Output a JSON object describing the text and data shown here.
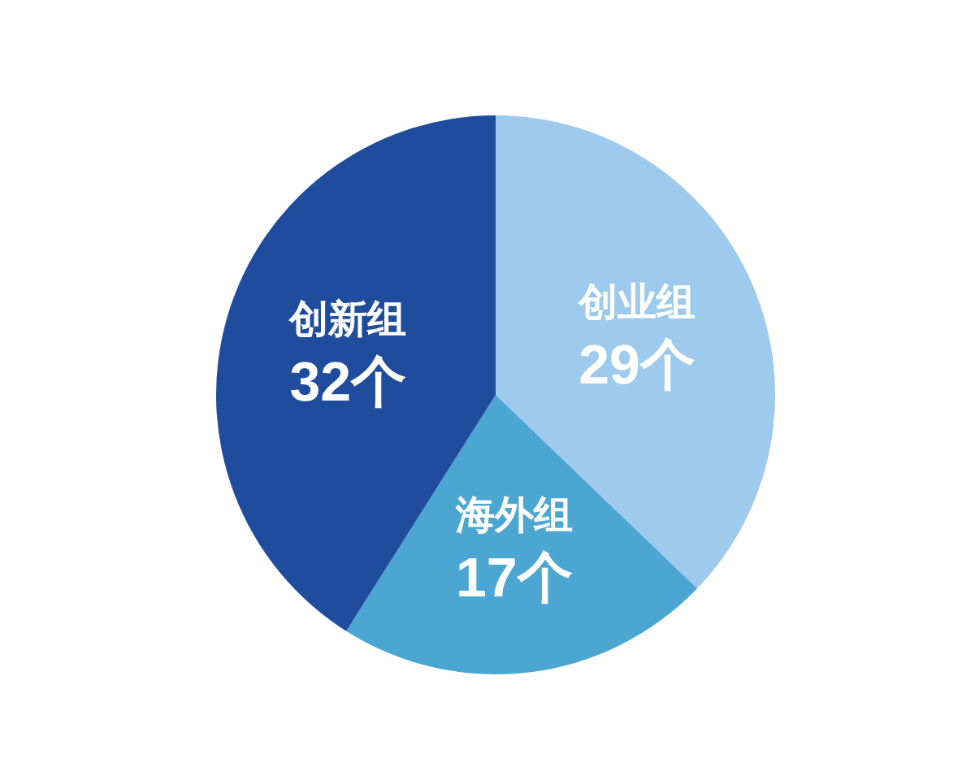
{
  "chart_data": {
    "type": "pie",
    "categories": [
      "创业组",
      "海外组",
      "创新组"
    ],
    "values": [
      29,
      17,
      32
    ],
    "value_labels": [
      "29个",
      "17个",
      "32个"
    ],
    "colors": [
      "#9dcaed",
      "#4ba6d1",
      "#1f4c9c"
    ],
    "legend": false
  }
}
